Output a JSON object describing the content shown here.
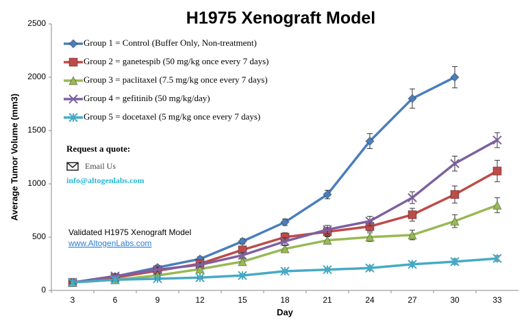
{
  "chart_data": {
    "type": "line",
    "title": "H1975 Xenograft Model",
    "x_label": "Day",
    "y_label": "Average Tumor Volume (mm3)",
    "categories": [
      "3",
      "6",
      "9",
      "12",
      "15",
      "18",
      "21",
      "24",
      "27",
      "30",
      "33"
    ],
    "ylim": [
      0,
      2500
    ],
    "yticks": [
      0,
      500,
      1000,
      1500,
      2000,
      2500
    ],
    "legend": "top-left",
    "series": [
      {
        "name": "Group 1 = Control (Buffer Only, Non-treatment)",
        "color": "#4a7ebb",
        "marker": "diamond",
        "values": [
          75,
          130,
          215,
          295,
          460,
          640,
          900,
          1400,
          1800,
          2000,
          null
        ],
        "errors": [
          10,
          15,
          20,
          20,
          25,
          30,
          40,
          70,
          90,
          100,
          null
        ]
      },
      {
        "name": "Group 2 = ganetespib (50 mg/kg once every 7 days)",
        "color": "#be4b48",
        "marker": "square",
        "values": [
          75,
          120,
          185,
          250,
          380,
          500,
          550,
          600,
          710,
          900,
          1120
        ],
        "errors": [
          10,
          15,
          20,
          20,
          30,
          40,
          40,
          45,
          60,
          80,
          100
        ]
      },
      {
        "name": "Group 3 = paclitaxel (7.5 mg/kg once every 7 days)",
        "color": "#98b954",
        "marker": "triangle",
        "values": [
          75,
          100,
          140,
          200,
          270,
          390,
          470,
          500,
          520,
          650,
          800
        ],
        "errors": [
          10,
          10,
          15,
          20,
          25,
          30,
          35,
          40,
          45,
          60,
          70
        ]
      },
      {
        "name": "Group 4 = gefitinib (50 mg/kg/day)",
        "color": "#7d60a0",
        "marker": "x",
        "values": [
          75,
          135,
          195,
          240,
          330,
          460,
          570,
          650,
          870,
          1190,
          1410
        ],
        "errors": [
          10,
          15,
          20,
          20,
          25,
          35,
          40,
          45,
          55,
          70,
          70
        ]
      },
      {
        "name": "Group 5 = docetaxel (5 mg/kg once every 7 days)",
        "color": "#46aac5",
        "marker": "star",
        "values": [
          75,
          100,
          110,
          120,
          140,
          180,
          195,
          210,
          245,
          270,
          300
        ],
        "errors": [
          10,
          10,
          10,
          10,
          15,
          15,
          15,
          20,
          20,
          25,
          25
        ]
      }
    ],
    "annotations": [
      "Request a quote:",
      "Email Us",
      "info@altogenlabs.com",
      "Validated H1975 Xenograft Model",
      "www.AltogenLabs.com"
    ]
  }
}
